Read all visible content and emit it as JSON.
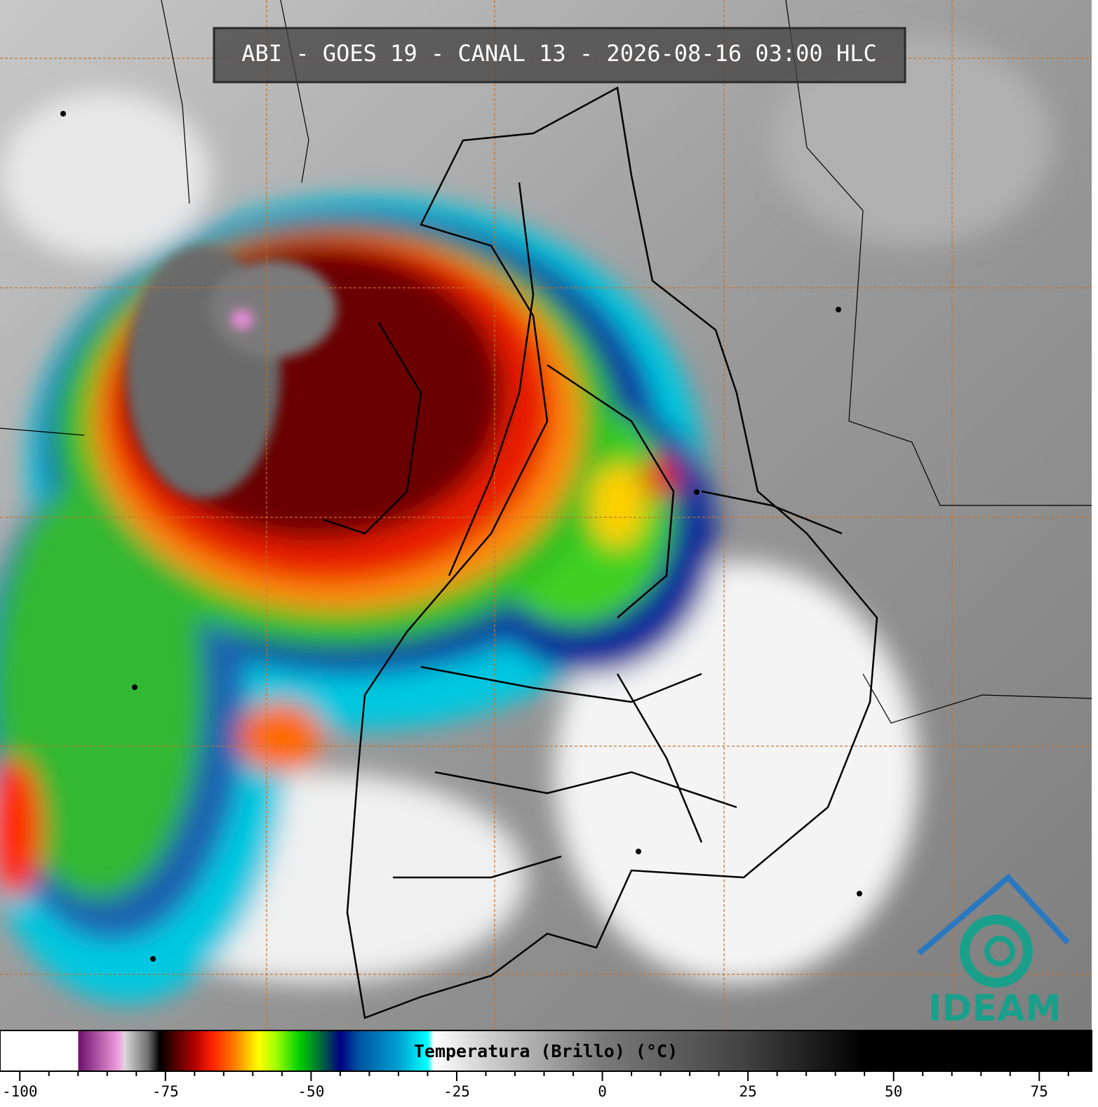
{
  "title": "ABI - GOES 19 - CANAL 13 - 2026-08-16 03:00 HLC",
  "logo": "IDEAM",
  "colorbar": {
    "label": "Temperatura (Brillo) (°C)",
    "lim": [
      -103.4,
      84
    ],
    "ticks": [
      -100,
      -75,
      -50,
      -25,
      0,
      25,
      50,
      75
    ],
    "minor_ticks": [
      -95,
      -90,
      -85,
      -80,
      -70,
      -65,
      -60,
      -55,
      -45,
      -40,
      -35,
      -30,
      -20,
      -15,
      -10,
      -5,
      5,
      10,
      15,
      20,
      30,
      35,
      40,
      45,
      55,
      60,
      65,
      70,
      80
    ],
    "stops": [
      {
        "value": -103.4,
        "color": "#ffffff"
      },
      {
        "value": -90,
        "color": "#ffffff"
      },
      {
        "value": -90,
        "color": "#6a0f6a"
      },
      {
        "value": -83,
        "color": "#f0a0e0"
      },
      {
        "value": -82,
        "color": "#d8d8d8"
      },
      {
        "value": -78,
        "color": "#707070"
      },
      {
        "value": -76,
        "color": "#000000"
      },
      {
        "value": -73,
        "color": "#5a0000"
      },
      {
        "value": -70,
        "color": "#b00000"
      },
      {
        "value": -67,
        "color": "#ff2000"
      },
      {
        "value": -63,
        "color": "#ff8000"
      },
      {
        "value": -59,
        "color": "#ffff00"
      },
      {
        "value": -56,
        "color": "#a0ff00"
      },
      {
        "value": -52,
        "color": "#00d000"
      },
      {
        "value": -48,
        "color": "#006040"
      },
      {
        "value": -45,
        "color": "#000080"
      },
      {
        "value": -42,
        "color": "#0050a0"
      },
      {
        "value": -35,
        "color": "#00a0d0"
      },
      {
        "value": -30,
        "color": "#00ffff"
      },
      {
        "value": -29,
        "color": "#ffffff"
      },
      {
        "value": -20,
        "color": "#d0d0d0"
      },
      {
        "value": 0,
        "color": "#7a7a7a"
      },
      {
        "value": 25,
        "color": "#404040"
      },
      {
        "value": 45,
        "color": "#000000"
      },
      {
        "value": 84,
        "color": "#000000"
      }
    ]
  }
}
